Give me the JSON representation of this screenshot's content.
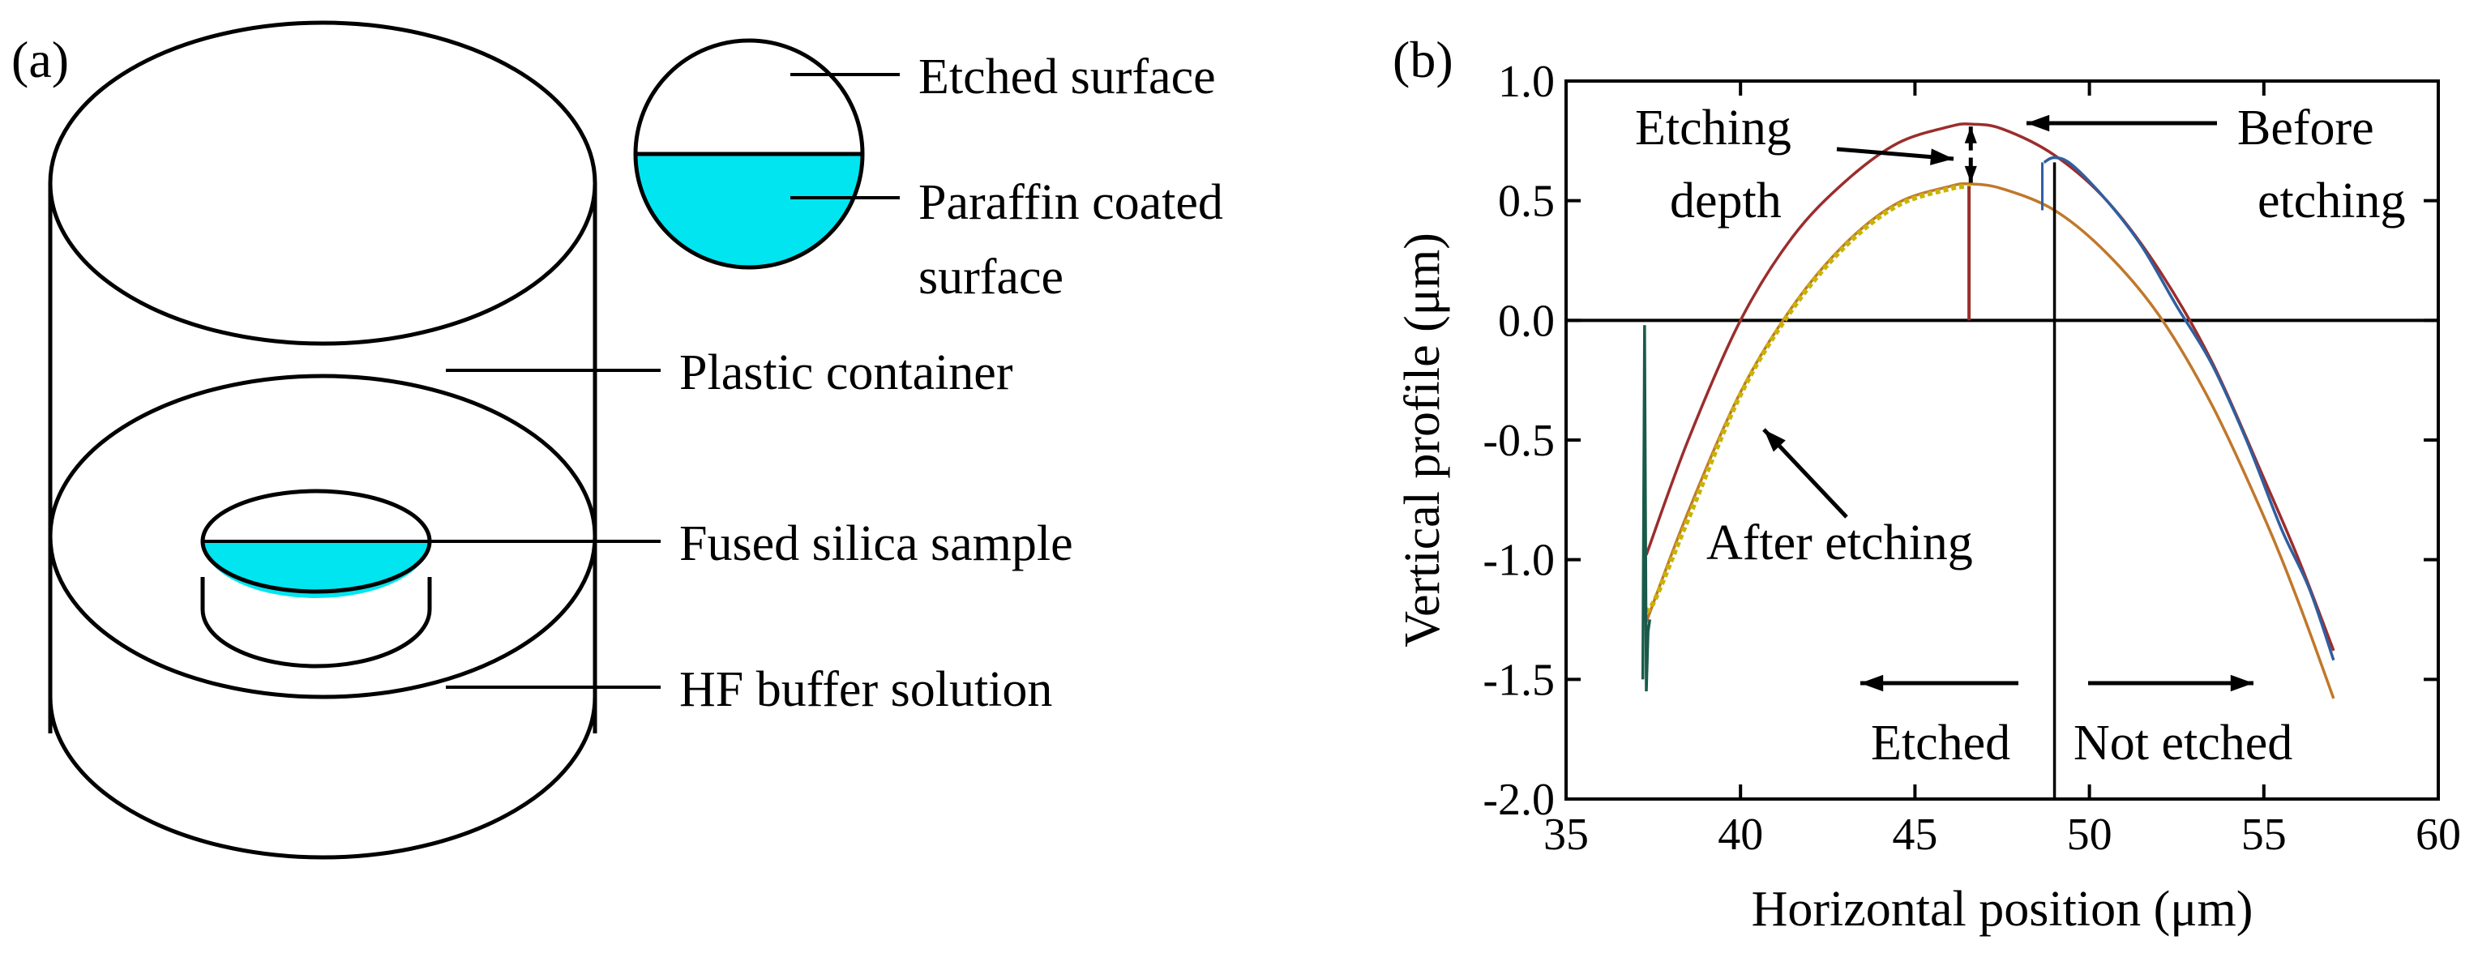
{
  "panel_a": {
    "label": "(a)",
    "inset_labels": {
      "etched": "Etched surface",
      "paraffin_l1": "Paraffin coated",
      "paraffin_l2": "surface"
    },
    "labels": {
      "container": "Plastic container",
      "sample": "Fused silica sample",
      "solution": "HF buffer solution"
    },
    "colors": {
      "paraffin": "#00e5f0",
      "outline": "#000000"
    }
  },
  "panel_b": {
    "label": "(b)",
    "annotations": {
      "etching_depth_l1": "Etching",
      "etching_depth_l2": "depth",
      "before_l1": "Before",
      "before_l2": "etching",
      "after": "After etching",
      "etched": "Etched",
      "not_etched": "Not etched"
    }
  },
  "chart_data": {
    "type": "line",
    "xlabel": "Horizontal position (μm)",
    "ylabel": "Vertical profile (μm)",
    "xlim": [
      35,
      60
    ],
    "ylim": [
      -2.0,
      1.0
    ],
    "xticks": [
      "35",
      "40",
      "45",
      "50",
      "55",
      "60"
    ],
    "yticks": [
      "1.0",
      "0.5",
      "0.0",
      "-0.5",
      "-1.0",
      "-1.5",
      "-2.0"
    ],
    "grid": false,
    "divider_x": 49.0,
    "series": [
      {
        "color": "#9b2d2d",
        "x": [
          37.3,
          38.5,
          40,
          41.5,
          43,
          44.5,
          46,
          46.6,
          47.5,
          49,
          50.5,
          52,
          53.5,
          55,
          56,
          57
        ],
        "y": [
          -0.98,
          -0.5,
          0.0,
          0.35,
          0.58,
          0.74,
          0.81,
          0.82,
          0.8,
          0.69,
          0.5,
          0.21,
          -0.17,
          -0.66,
          -1.0,
          -1.38
        ]
      },
      {
        "color": "#c0782c",
        "x": [
          37.3,
          38.5,
          40,
          41.5,
          43,
          44.5,
          46,
          46.6,
          47.5,
          49,
          50.5,
          52,
          53.5,
          55,
          56,
          57
        ],
        "y": [
          -1.26,
          -0.8,
          -0.3,
          0.06,
          0.32,
          0.49,
          0.56,
          0.57,
          0.55,
          0.46,
          0.28,
          0.02,
          -0.35,
          -0.82,
          -1.18,
          -1.58
        ]
      },
      {
        "color": "#c8b400",
        "x": [
          37.3,
          37.6,
          38.5,
          40,
          41.5,
          43,
          44.5,
          46,
          46.6
        ],
        "y": [
          -1.22,
          -1.15,
          -0.83,
          -0.31,
          0.05,
          0.31,
          0.48,
          0.55,
          0.56
        ]
      },
      {
        "color": "#2f5fa0",
        "x": [
          48.7,
          49,
          49.5,
          50.5,
          51.5,
          52.5,
          53.5,
          54.5,
          55.5,
          56.3,
          57
        ],
        "y": [
          0.66,
          0.68,
          0.65,
          0.5,
          0.31,
          0.06,
          -0.18,
          -0.5,
          -0.87,
          -1.12,
          -1.42
        ]
      },
      {
        "color": "#1a5a4a",
        "x": [
          37.2,
          37.25,
          37.3,
          37.35,
          37.4
        ],
        "y": [
          -1.5,
          -0.02,
          -1.55,
          -1.3,
          -1.25
        ]
      }
    ]
  }
}
